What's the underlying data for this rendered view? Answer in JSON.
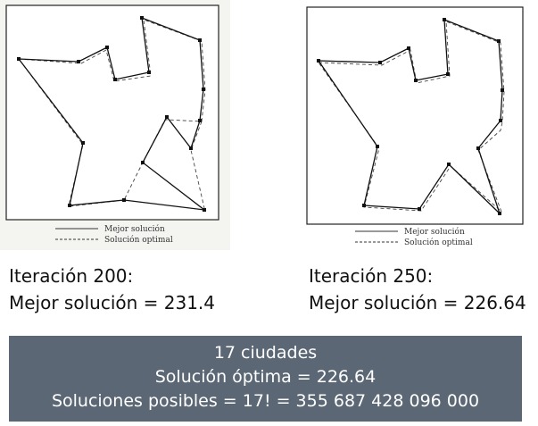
{
  "panels": [
    {
      "legend": {
        "best": "Mejor solución",
        "optimal": "Solución optimal"
      },
      "caption_line1": "Iteración 200:",
      "caption_line2": "Mejor solución = 231.4"
    },
    {
      "legend": {
        "best": "Mejor solución",
        "optimal": "Solución optimal"
      },
      "caption_line1": "Iteración 250:",
      "caption_line2": "Mejor solución = 226.64"
    }
  ],
  "summary": {
    "line1": "17 ciudades",
    "line2": "Solución óptima = 226.64",
    "line3": "Soluciones posibles = 17! = 355 687 428 096 000"
  }
}
